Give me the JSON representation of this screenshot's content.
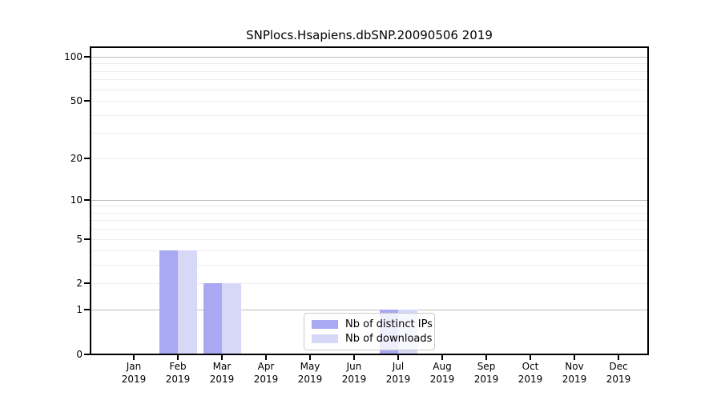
{
  "chart_data": {
    "type": "bar",
    "title": "SNPlocs.Hsapiens.dbSNP.20090506 2019",
    "year_label": "2019",
    "categories": [
      "Jan",
      "Feb",
      "Mar",
      "Apr",
      "May",
      "Jun",
      "Jul",
      "Aug",
      "Sep",
      "Oct",
      "Nov",
      "Dec"
    ],
    "series": [
      {
        "name": "Nb of distinct IPs",
        "color": "#a9a9f3",
        "values": [
          0,
          4,
          2,
          0,
          0,
          0,
          1,
          0,
          0,
          0,
          0,
          0
        ]
      },
      {
        "name": "Nb of downloads",
        "color": "#d7d7f8",
        "values": [
          0,
          4,
          2,
          0,
          0,
          0,
          1,
          0,
          0,
          0,
          0,
          0
        ]
      }
    ],
    "yscale": "log1p",
    "ylim": [
      0,
      116
    ],
    "yticks": [
      0,
      1,
      2,
      5,
      10,
      20,
      50,
      100
    ],
    "gridlines": {
      "major": [
        1,
        10,
        100
      ],
      "minor": [
        2,
        3,
        4,
        5,
        6,
        7,
        8,
        9,
        20,
        30,
        40,
        50,
        60,
        70,
        80,
        90
      ]
    },
    "legend": {
      "entries": [
        "Nb of distinct IPs",
        "Nb of downloads"
      ],
      "location": "lower center"
    },
    "xlabel": "",
    "ylabel": ""
  },
  "colors": {
    "background": "#ffffff",
    "axis": "#000000",
    "grid_major": "#bdbdbd",
    "grid_minor": "#ededed",
    "legend_border": "#cccccc",
    "text": "#000000"
  }
}
